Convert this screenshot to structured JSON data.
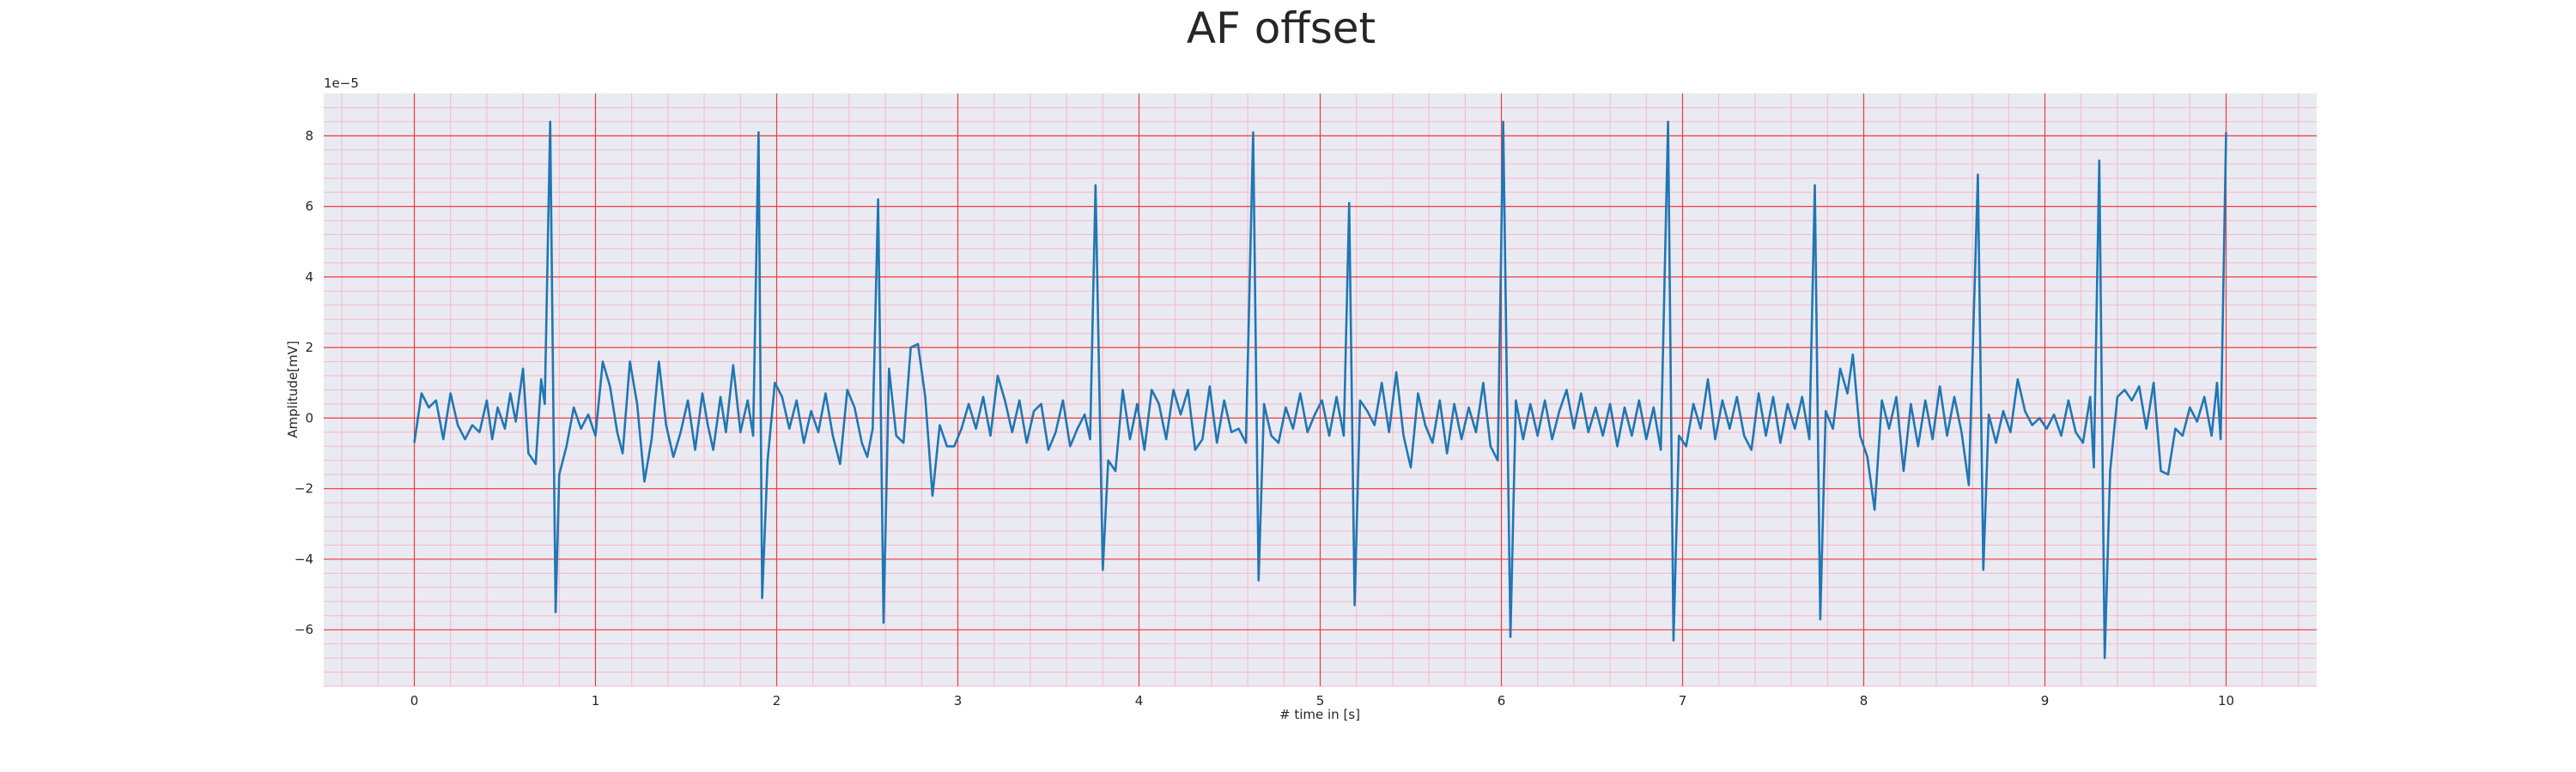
{
  "chart_data": {
    "type": "line",
    "title": "AF offset",
    "xlabel": "# time in [s]",
    "ylabel": "Amplitude[mV]",
    "offset_text": "1e−5",
    "xlim": [
      -0.5,
      10.5
    ],
    "ylim": [
      -7.6,
      9.2
    ],
    "xticks": [
      0,
      1,
      2,
      3,
      4,
      5,
      6,
      7,
      8,
      9,
      10
    ],
    "yticks": [
      {
        "value": -6,
        "label": "−6"
      },
      {
        "value": -4,
        "label": "−4"
      },
      {
        "value": -2,
        "label": "−2"
      },
      0,
      2,
      4,
      6,
      8
    ],
    "grid": true,
    "grid_color": "#f03c3c",
    "minor_grid_color": "#f5b8c8",
    "minor_divisions": 5,
    "background": "#eaeaf2",
    "x": [
      0.0,
      0.04,
      0.08,
      0.12,
      0.16,
      0.2,
      0.24,
      0.28,
      0.32,
      0.36,
      0.4,
      0.43,
      0.46,
      0.5,
      0.53,
      0.56,
      0.6,
      0.63,
      0.67,
      0.7,
      0.72,
      0.75,
      0.78,
      0.8,
      0.84,
      0.88,
      0.92,
      0.96,
      1.0,
      1.04,
      1.08,
      1.12,
      1.15,
      1.19,
      1.23,
      1.27,
      1.31,
      1.35,
      1.39,
      1.43,
      1.47,
      1.51,
      1.55,
      1.59,
      1.62,
      1.65,
      1.69,
      1.72,
      1.76,
      1.8,
      1.84,
      1.87,
      1.9,
      1.92,
      1.95,
      1.99,
      2.03,
      2.07,
      2.11,
      2.15,
      2.19,
      2.23,
      2.27,
      2.31,
      2.35,
      2.39,
      2.43,
      2.47,
      2.5,
      2.53,
      2.56,
      2.59,
      2.62,
      2.66,
      2.7,
      2.74,
      2.78,
      2.82,
      2.86,
      2.9,
      2.94,
      2.98,
      3.02,
      3.06,
      3.1,
      3.14,
      3.18,
      3.22,
      3.26,
      3.3,
      3.34,
      3.38,
      3.42,
      3.46,
      3.5,
      3.54,
      3.58,
      3.62,
      3.66,
      3.7,
      3.73,
      3.76,
      3.8,
      3.83,
      3.87,
      3.91,
      3.95,
      3.99,
      4.03,
      4.07,
      4.11,
      4.15,
      4.19,
      4.23,
      4.27,
      4.31,
      4.35,
      4.39,
      4.43,
      4.47,
      4.51,
      4.55,
      4.59,
      4.63,
      4.66,
      4.69,
      4.73,
      4.77,
      4.81,
      4.85,
      4.89,
      4.93,
      4.97,
      5.01,
      5.05,
      5.09,
      5.13,
      5.16,
      5.19,
      5.22,
      5.26,
      5.3,
      5.34,
      5.38,
      5.42,
      5.46,
      5.5,
      5.54,
      5.58,
      5.62,
      5.66,
      5.7,
      5.74,
      5.78,
      5.82,
      5.86,
      5.9,
      5.94,
      5.98,
      6.01,
      6.05,
      6.08,
      6.12,
      6.16,
      6.2,
      6.24,
      6.28,
      6.32,
      6.36,
      6.4,
      6.44,
      6.48,
      6.52,
      6.56,
      6.6,
      6.64,
      6.68,
      6.72,
      6.76,
      6.8,
      6.84,
      6.88,
      6.92,
      6.95,
      6.98,
      7.02,
      7.06,
      7.1,
      7.14,
      7.18,
      7.22,
      7.26,
      7.3,
      7.34,
      7.38,
      7.42,
      7.46,
      7.5,
      7.54,
      7.58,
      7.62,
      7.66,
      7.7,
      7.73,
      7.76,
      7.79,
      7.83,
      7.87,
      7.91,
      7.94,
      7.98,
      8.02,
      8.06,
      8.1,
      8.14,
      8.18,
      8.22,
      8.26,
      8.3,
      8.34,
      8.38,
      8.42,
      8.46,
      8.5,
      8.54,
      8.58,
      8.63,
      8.66,
      8.69,
      8.73,
      8.77,
      8.81,
      8.85,
      8.89,
      8.93,
      8.97,
      9.01,
      9.05,
      9.09,
      9.13,
      9.17,
      9.21,
      9.25,
      9.27,
      9.3,
      9.33,
      9.36,
      9.4,
      9.44,
      9.48,
      9.52,
      9.56,
      9.6,
      9.64,
      9.68,
      9.72,
      9.76,
      9.8,
      9.84,
      9.88,
      9.92,
      9.95,
      9.97,
      10.0
    ],
    "series": [
      {
        "color": "#1f77b4",
        "values": [
          -0.7,
          0.7,
          0.3,
          0.5,
          -0.6,
          0.7,
          -0.2,
          -0.6,
          -0.2,
          -0.4,
          0.5,
          -0.6,
          0.3,
          -0.3,
          0.7,
          -0.1,
          1.4,
          -1.0,
          -1.3,
          1.1,
          0.4,
          8.4,
          -5.5,
          -1.6,
          -0.8,
          0.3,
          -0.3,
          0.1,
          -0.5,
          1.6,
          0.9,
          -0.4,
          -1.0,
          1.6,
          0.4,
          -1.8,
          -0.6,
          1.6,
          -0.2,
          -1.1,
          -0.4,
          0.5,
          -0.9,
          0.7,
          -0.2,
          -0.9,
          0.6,
          -0.4,
          1.5,
          -0.4,
          0.5,
          -0.5,
          8.1,
          -5.1,
          -1.2,
          1.0,
          0.6,
          -0.3,
          0.5,
          -0.7,
          0.2,
          -0.4,
          0.7,
          -0.5,
          -1.3,
          0.8,
          0.3,
          -0.7,
          -1.1,
          -0.3,
          6.2,
          -5.8,
          1.4,
          -0.5,
          -0.7,
          2.0,
          2.1,
          0.6,
          -2.2,
          -0.2,
          -0.8,
          -0.8,
          -0.3,
          0.4,
          -0.3,
          0.6,
          -0.5,
          1.2,
          0.5,
          -0.4,
          0.5,
          -0.7,
          0.2,
          0.4,
          -0.9,
          -0.4,
          0.5,
          -0.8,
          -0.3,
          0.1,
          -0.6,
          6.6,
          -4.3,
          -1.2,
          -1.5,
          0.8,
          -0.6,
          0.4,
          -0.9,
          0.8,
          0.4,
          -0.6,
          0.8,
          0.1,
          0.8,
          -0.9,
          -0.6,
          0.9,
          -0.7,
          0.5,
          -0.4,
          -0.3,
          -0.7,
          8.1,
          -4.6,
          0.4,
          -0.5,
          -0.7,
          0.3,
          -0.3,
          0.7,
          -0.4,
          0.1,
          0.5,
          -0.5,
          0.6,
          -0.5,
          6.1,
          -5.3,
          0.5,
          0.2,
          -0.2,
          1.0,
          -0.4,
          1.3,
          -0.5,
          -1.4,
          0.7,
          -0.2,
          -0.7,
          0.5,
          -1.0,
          0.4,
          -0.6,
          0.3,
          -0.4,
          1.0,
          -0.8,
          -1.2,
          8.4,
          -6.2,
          0.5,
          -0.6,
          0.4,
          -0.5,
          0.5,
          -0.6,
          0.2,
          0.8,
          -0.3,
          0.7,
          -0.4,
          0.3,
          -0.5,
          0.4,
          -0.8,
          0.3,
          -0.5,
          0.5,
          -0.6,
          0.3,
          -0.9,
          8.4,
          -6.3,
          -0.5,
          -0.8,
          0.4,
          -0.3,
          1.1,
          -0.6,
          0.5,
          -0.3,
          0.6,
          -0.5,
          -0.9,
          0.7,
          -0.5,
          0.6,
          -0.7,
          0.4,
          -0.3,
          0.6,
          -0.6,
          6.6,
          -5.7,
          0.2,
          -0.3,
          1.4,
          0.7,
          1.8,
          -0.5,
          -1.1,
          -2.6,
          0.5,
          -0.3,
          0.6,
          -1.5,
          0.4,
          -0.8,
          0.5,
          -0.6,
          0.9,
          -0.5,
          0.6,
          -0.4,
          -1.9,
          6.9,
          -4.3,
          0.1,
          -0.7,
          0.2,
          -0.4,
          1.1,
          0.2,
          -0.2,
          0.0,
          -0.3,
          0.1,
          -0.5,
          0.5,
          -0.4,
          -0.7,
          0.6,
          -1.4,
          7.3,
          -6.8,
          -1.5,
          0.6,
          0.8,
          0.5,
          0.9,
          -0.3,
          1.0,
          -1.5,
          -1.6,
          -0.3,
          -0.5,
          0.3,
          -0.1,
          0.6,
          -0.5,
          1.0,
          -0.6,
          8.1
        ]
      }
    ]
  }
}
